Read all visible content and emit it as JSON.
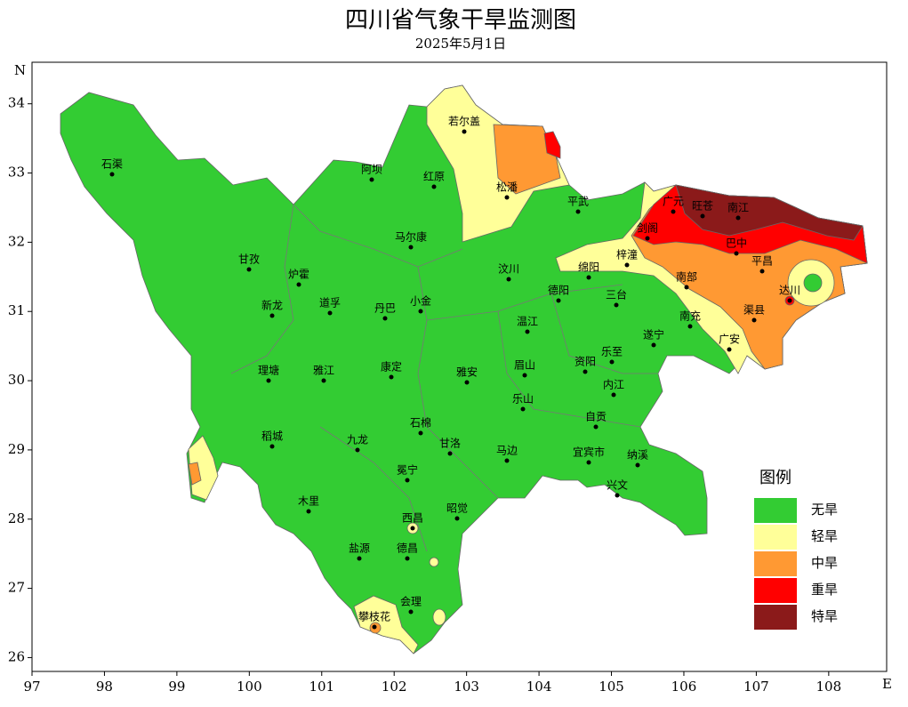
{
  "map": {
    "title": "四川省气象干旱监测图",
    "subtitle": "2025年5月1日",
    "lat_label": "N",
    "lon_label": "E",
    "xlim": [
      97,
      108.8
    ],
    "ylim": [
      25.8,
      34.6
    ],
    "xticks": [
      97,
      98,
      99,
      100,
      101,
      102,
      103,
      104,
      105,
      106,
      107,
      108
    ],
    "yticks": [
      26,
      27,
      28,
      29,
      30,
      31,
      32,
      33,
      34
    ],
    "legend": {
      "title": "图例",
      "items": [
        {
          "label": "无旱",
          "color": "#33cc33"
        },
        {
          "label": "轻旱",
          "color": "#ffff99"
        },
        {
          "label": "中旱",
          "color": "#ff9933"
        },
        {
          "label": "重旱",
          "color": "#ff0000"
        },
        {
          "label": "特旱",
          "color": "#8b1a1a"
        }
      ]
    },
    "cities": [
      "石渠",
      "阿坝",
      "若尔盖",
      "红原",
      "松潘",
      "平武",
      "广元",
      "旺苍",
      "南江",
      "巴中",
      "剑阁",
      "梓潼",
      "绵阳",
      "汶川",
      "马尔康",
      "甘孜",
      "炉霍",
      "新龙",
      "道孚",
      "丹巴",
      "小金",
      "德阳",
      "三台",
      "南部",
      "平昌",
      "达川",
      "渠县",
      "南充",
      "广安",
      "遂宁",
      "乐至",
      "资阳",
      "内江",
      "温江",
      "理塘",
      "雅江",
      "康定",
      "雅安",
      "眉山",
      "乐山",
      "自贡",
      "石棉",
      "稻城",
      "九龙",
      "甘洛",
      "马边",
      "宜宾市",
      "纳溪",
      "冕宁",
      "兴文",
      "木里",
      "西昌",
      "昭觉",
      "盐源",
      "德昌",
      "会理",
      "攀枝花"
    ]
  }
}
